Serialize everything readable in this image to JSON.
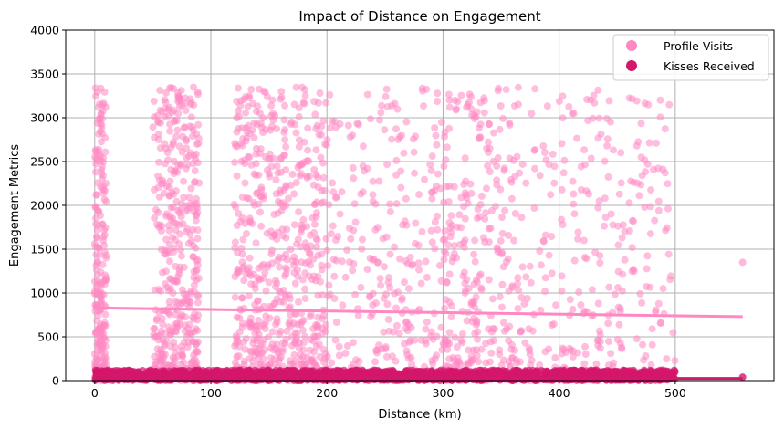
{
  "chart_data": {
    "type": "scatter",
    "title": "Impact of Distance on Engagement",
    "xlabel": "Distance (km)",
    "ylabel": "Engagement Metrics",
    "xlim": [
      -25,
      585
    ],
    "ylim": [
      0,
      4000
    ],
    "xticks": [
      0,
      100,
      200,
      300,
      400,
      500
    ],
    "yticks": [
      0,
      500,
      1000,
      1500,
      2000,
      2500,
      3000,
      3500,
      4000
    ],
    "grid": true,
    "legend_position": "top-right",
    "series": [
      {
        "name": "Profile Visits",
        "color": "#ff88c2",
        "distance_range": [
          0,
          500
        ],
        "value_range": [
          0,
          3350
        ],
        "outlier": [
          558,
          1350
        ],
        "trend": {
          "x": [
            0,
            558
          ],
          "y": [
            830,
            730
          ]
        }
      },
      {
        "name": "Kisses Received",
        "color": "#d4176b",
        "distance_range": [
          0,
          500
        ],
        "value_range": [
          0,
          120
        ],
        "outlier": [
          558,
          40
        ],
        "trend": {
          "x": [
            0,
            500,
            558
          ],
          "y": [
            60,
            25,
            25
          ]
        }
      }
    ]
  }
}
